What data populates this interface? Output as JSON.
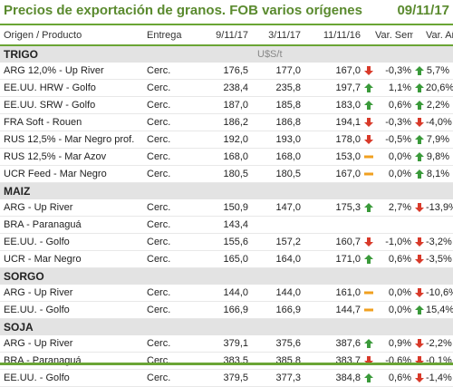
{
  "header": {
    "title": "Precios de exportación de granos. FOB varios orígenes",
    "date": "09/11/17"
  },
  "columns": {
    "name": "Origen / Producto",
    "entrega": "Entrega",
    "d1": "9/11/17",
    "d2": "3/11/17",
    "d3": "11/11/16",
    "sem": "Var. Sem.",
    "ano": "Var. Año"
  },
  "colors": {
    "up": "#3a9a3a",
    "down": "#d83a2a",
    "flat": "#f0a020",
    "accent": "#6aa535",
    "title": "#5a8a2e"
  },
  "sections": [
    {
      "name": "TRIGO",
      "unit": "U$S/t",
      "rows": [
        {
          "name": "ARG 12,0% - Up River",
          "entrega": "Cerc.",
          "d1": "176,5",
          "d2": "177,0",
          "d3": "167,0",
          "i1": "down",
          "sem": "-0,3%",
          "i2": "up",
          "ano": "5,7%"
        },
        {
          "name": "EE.UU. HRW - Golfo",
          "entrega": "Cerc.",
          "d1": "238,4",
          "d2": "235,8",
          "d3": "197,7",
          "i1": "up",
          "sem": "1,1%",
          "i2": "up",
          "ano": "20,6%"
        },
        {
          "name": "EE.UU. SRW - Golfo",
          "entrega": "Cerc.",
          "d1": "187,0",
          "d2": "185,8",
          "d3": "183,0",
          "i1": "up",
          "sem": "0,6%",
          "i2": "up",
          "ano": "2,2%"
        },
        {
          "name": "FRA Soft - Rouen",
          "entrega": "Cerc.",
          "d1": "186,2",
          "d2": "186,8",
          "d3": "194,1",
          "i1": "down",
          "sem": "-0,3%",
          "i2": "down",
          "ano": "-4,0%"
        },
        {
          "name": "RUS 12,5% - Mar Negro prof.",
          "entrega": "Cerc.",
          "d1": "192,0",
          "d2": "193,0",
          "d3": "178,0",
          "i1": "down",
          "sem": "-0,5%",
          "i2": "up",
          "ano": "7,9%"
        },
        {
          "name": "RUS 12,5% - Mar Azov",
          "entrega": "Cerc.",
          "d1": "168,0",
          "d2": "168,0",
          "d3": "153,0",
          "i1": "flat",
          "sem": "0,0%",
          "i2": "up",
          "ano": "9,8%"
        },
        {
          "name": "UCR Feed - Mar Negro",
          "entrega": "Cerc.",
          "d1": "180,5",
          "d2": "180,5",
          "d3": "167,0",
          "i1": "flat",
          "sem": "0,0%",
          "i2": "up",
          "ano": "8,1%"
        }
      ]
    },
    {
      "name": "MAIZ",
      "unit": "",
      "rows": [
        {
          "name": "ARG - Up River",
          "entrega": "Cerc.",
          "d1": "150,9",
          "d2": "147,0",
          "d3": "175,3",
          "i1": "up",
          "sem": "2,7%",
          "i2": "down",
          "ano": "-13,9%"
        },
        {
          "name": "BRA - Paranaguá",
          "entrega": "Cerc.",
          "d1": "143,4",
          "d2": "",
          "d3": "",
          "i1": "",
          "sem": "",
          "i2": "",
          "ano": ""
        },
        {
          "name": "EE.UU. - Golfo",
          "entrega": "Cerc.",
          "d1": "155,6",
          "d2": "157,2",
          "d3": "160,7",
          "i1": "down",
          "sem": "-1,0%",
          "i2": "down",
          "ano": "-3,2%"
        },
        {
          "name": "UCR - Mar Negro",
          "entrega": "Cerc.",
          "d1": "165,0",
          "d2": "164,0",
          "d3": "171,0",
          "i1": "up",
          "sem": "0,6%",
          "i2": "down",
          "ano": "-3,5%"
        }
      ]
    },
    {
      "name": "SORGO",
      "unit": "",
      "rows": [
        {
          "name": "ARG - Up River",
          "entrega": "Cerc.",
          "d1": "144,0",
          "d2": "144,0",
          "d3": "161,0",
          "i1": "flat",
          "sem": "0,0%",
          "i2": "down",
          "ano": "-10,6%"
        },
        {
          "name": "EE.UU. - Golfo",
          "entrega": "Cerc.",
          "d1": "166,9",
          "d2": "166,9",
          "d3": "144,7",
          "i1": "flat",
          "sem": "0,0%",
          "i2": "up",
          "ano": "15,4%"
        }
      ]
    },
    {
      "name": "SOJA",
      "unit": "",
      "rows": [
        {
          "name": "ARG - Up River",
          "entrega": "Cerc.",
          "d1": "379,1",
          "d2": "375,6",
          "d3": "387,6",
          "i1": "up",
          "sem": "0,9%",
          "i2": "down",
          "ano": "-2,2%"
        },
        {
          "name": "BRA - Paranaguá",
          "entrega": "Cerc.",
          "d1": "383,5",
          "d2": "385,8",
          "d3": "383,7",
          "i1": "down",
          "sem": "-0,6%",
          "i2": "down",
          "ano": "-0,1%"
        },
        {
          "name": "EE.UU. - Golfo",
          "entrega": "Cerc.",
          "d1": "379,5",
          "d2": "377,3",
          "d3": "384,8",
          "i1": "up",
          "sem": "0,6%",
          "i2": "down",
          "ano": "-1,4%"
        }
      ]
    }
  ]
}
